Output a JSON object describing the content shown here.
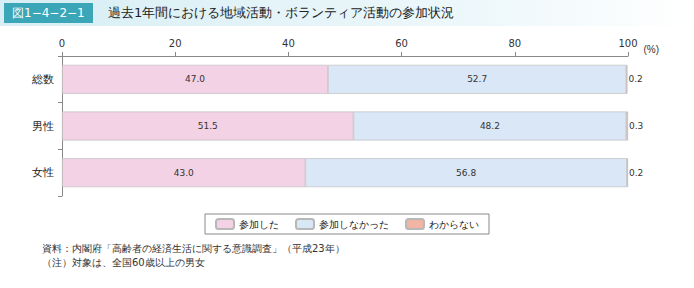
{
  "chart_data": {
    "type": "bar",
    "orientation": "horizontal",
    "stacked": true,
    "figure_number": "図1−4−2−1",
    "title": "過去1年間における地域活動・ボランティア活動の参加状況",
    "xlabel": "(%)",
    "categories": [
      "総数",
      "男性",
      "女性"
    ],
    "series": [
      {
        "name": "参加した",
        "color": "#f2d2e4",
        "values": [
          47.0,
          51.5,
          43.0
        ],
        "value_labels": [
          "47.0",
          "51.5",
          "43.0"
        ]
      },
      {
        "name": "参加しなかった",
        "color": "#dae7f6",
        "values": [
          52.7,
          48.2,
          56.8
        ],
        "value_labels": [
          "52.7",
          "48.2",
          "56.8"
        ]
      },
      {
        "name": "わからない",
        "color": "#f2b4a4",
        "values": [
          0.2,
          0.3,
          0.2
        ],
        "value_labels": [
          "0.2",
          "0.3",
          "0.2"
        ]
      }
    ],
    "xlim": [
      0,
      100
    ],
    "xticks": [
      0,
      20,
      40,
      60,
      80,
      100
    ],
    "grid": false,
    "legend": "bottom",
    "data_labels": true,
    "notes": [
      "資料：内閣府「高齢者の経済生活に関する意識調査」（平成23年）",
      "（注）対象は、全国60歳以上の男女"
    ]
  }
}
